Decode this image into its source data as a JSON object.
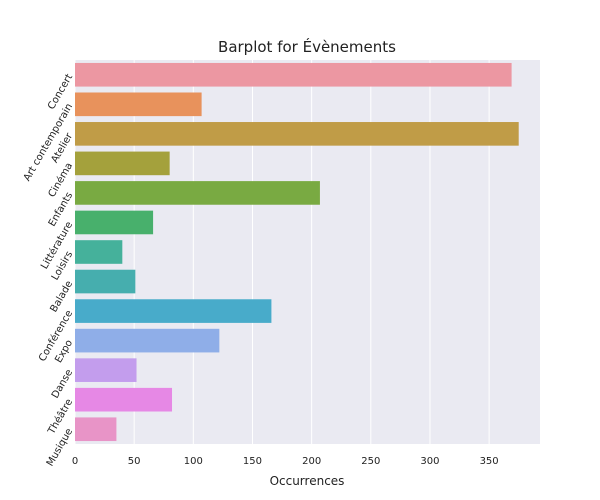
{
  "chart_data": {
    "type": "bar",
    "orientation": "horizontal",
    "title": "Barplot for Évènements",
    "xlabel": "Occurrences",
    "ylabel": "",
    "xlim": [
      0,
      393
    ],
    "xticks": [
      0,
      50,
      100,
      150,
      200,
      250,
      300,
      350
    ],
    "grid": true,
    "categories": [
      "Concert",
      "Art contemporain",
      "Atelier",
      "Cinéma",
      "Enfants",
      "Littérature",
      "Loisirs",
      "Balade",
      "Conférence",
      "Expo",
      "Danse",
      "Théâtre",
      "Musique"
    ],
    "values": [
      369,
      107,
      375,
      80,
      207,
      66,
      40,
      51,
      166,
      122,
      52,
      82,
      35
    ],
    "colors": [
      "#ec97a2",
      "#e8925c",
      "#c09c47",
      "#a4a13c",
      "#79aa42",
      "#48b06c",
      "#45b19b",
      "#46aeae",
      "#48abca",
      "#8faee8",
      "#c39ded",
      "#e688e5",
      "#e894c7"
    ]
  }
}
